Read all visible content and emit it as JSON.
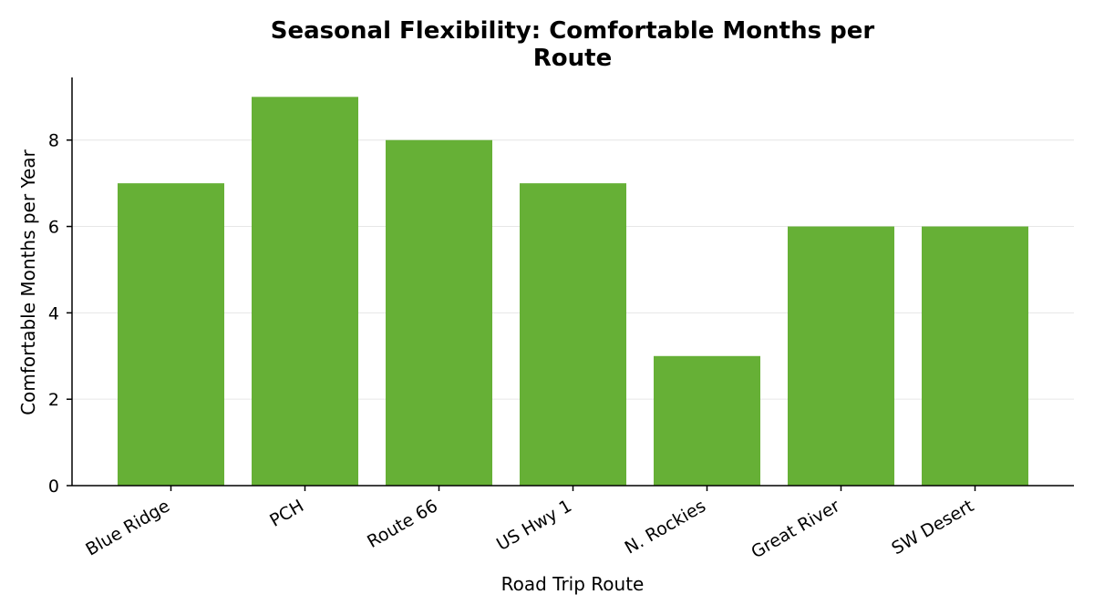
{
  "chart_data": {
    "type": "bar",
    "title": [
      "Seasonal Flexibility: Comfortable Months per",
      "Route"
    ],
    "xlabel": "Road Trip Route",
    "ylabel": "Comfortable Months per Year",
    "categories": [
      "Blue Ridge",
      "PCH",
      "Route 66",
      "US Hwy 1",
      "N. Rockies",
      "Great River",
      "SW Desert"
    ],
    "values": [
      7,
      9,
      8,
      7,
      3,
      6,
      6
    ],
    "ylim": [
      0,
      9.45
    ],
    "yticks": [
      0,
      2,
      4,
      6,
      8
    ],
    "grid": "horizontal",
    "legend": "none",
    "bar_color": "#66b036",
    "grid_color": "#e6e6e6"
  }
}
